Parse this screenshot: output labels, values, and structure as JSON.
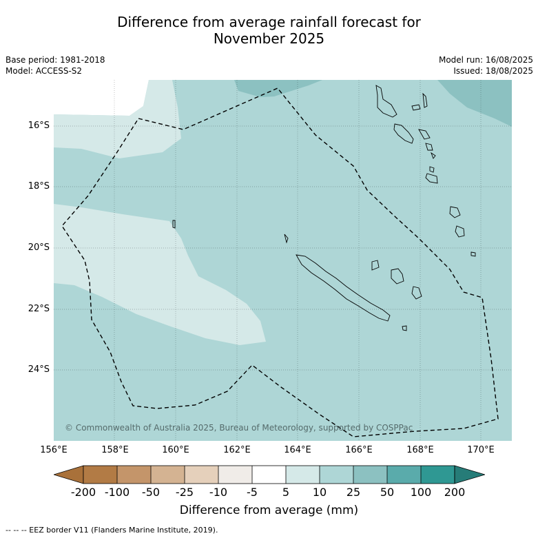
{
  "header": {
    "title_line1": "Difference from average rainfall forecast for",
    "title_line2": "November 2025",
    "base_period": "Base period: 1981-2018",
    "model": "Model: ACCESS-S2",
    "model_run": "Model run: 16/08/2025",
    "issued": "Issued: 18/08/2025"
  },
  "map": {
    "lat_labels": [
      "16°S",
      "18°S",
      "20°S",
      "22°S",
      "24°S"
    ],
    "lon_labels": [
      "156°E",
      "158°E",
      "160°E",
      "162°E",
      "164°E",
      "166°E",
      "168°E",
      "170°E"
    ],
    "lon_range": [
      156,
      171
    ],
    "lat_range": [
      -14.8,
      -26.6
    ],
    "copyright": "© Commonwealth of Australia 2025, Bureau of Meteorology, supported by COSPPac",
    "dominant_category": "10 to 25",
    "colors": {
      "c5_10": "#d5e9e8",
      "c10_25": "#aed6d6",
      "c25_50": "#8cc1c1"
    }
  },
  "colorbar": {
    "ticks": [
      "-200",
      "-100",
      "-50",
      "-25",
      "-10",
      "-5",
      "5",
      "10",
      "25",
      "50",
      "100",
      "200"
    ],
    "colors": [
      "#a9713a",
      "#b27b45",
      "#c4956a",
      "#d4b392",
      "#e5d0bb",
      "#f0ece8",
      "#ffffff",
      "#d5e9e8",
      "#aed6d6",
      "#8cc1c1",
      "#5aabab",
      "#2f9893",
      "#267c78"
    ],
    "label": "Difference from average (mm)"
  },
  "footnote": "--  --  -- EEZ border V11 (Flanders Marine Institute, 2019)."
}
